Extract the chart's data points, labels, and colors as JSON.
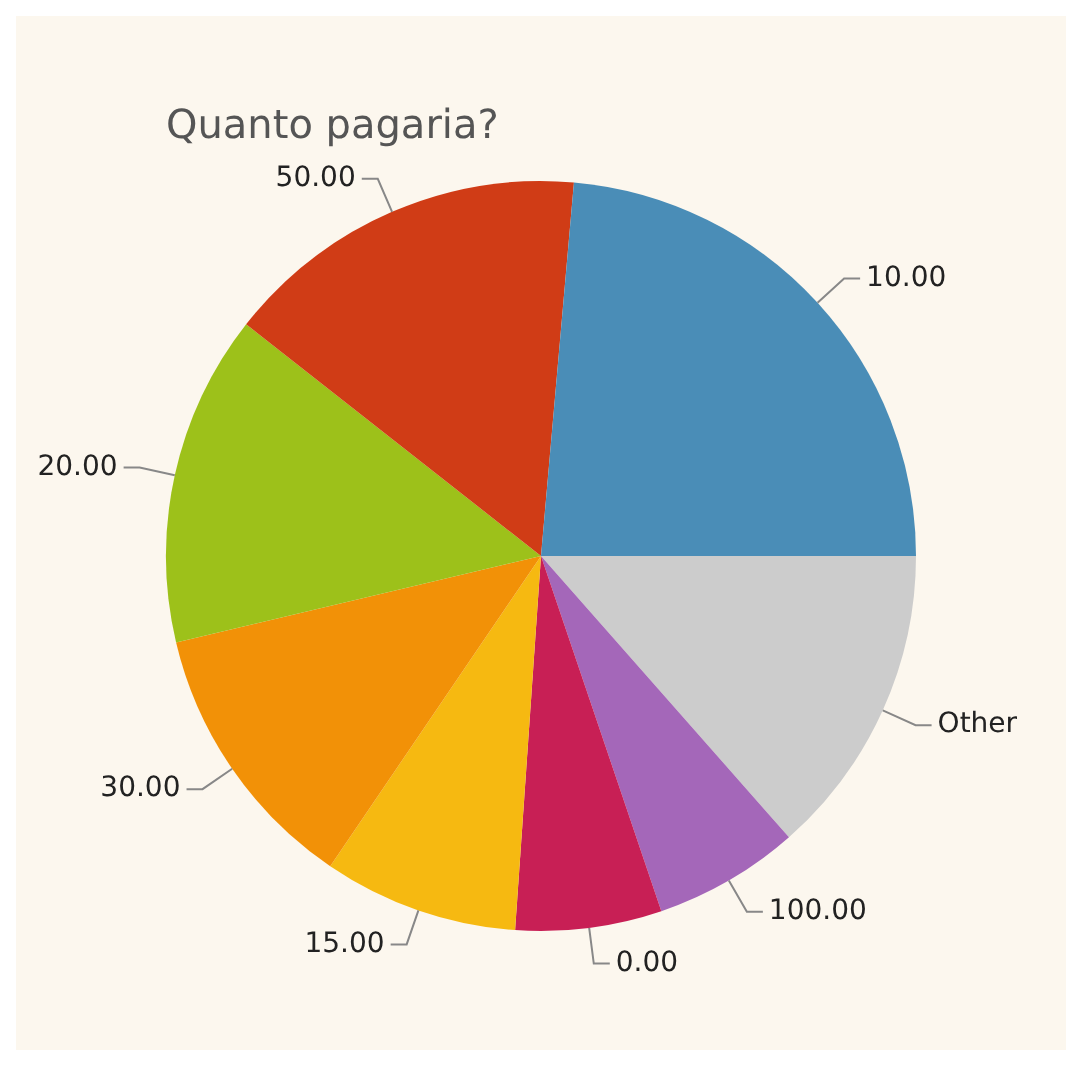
{
  "chart_data": {
    "type": "pie",
    "title": "Quanto pagaria?",
    "categories": [
      "10.00",
      "50.00",
      "20.00",
      "30.00",
      "15.00",
      "0.00",
      "100.00",
      "Other"
    ],
    "values": [
      23.6,
      15.8,
      14.3,
      11.8,
      8.4,
      6.3,
      6.3,
      13.5
    ],
    "colors": [
      "#4a8db7",
      "#d03c16",
      "#9dc11a",
      "#f29107",
      "#f6b911",
      "#c81f55",
      "#a467b9",
      "#cccccc"
    ],
    "legend": false
  }
}
